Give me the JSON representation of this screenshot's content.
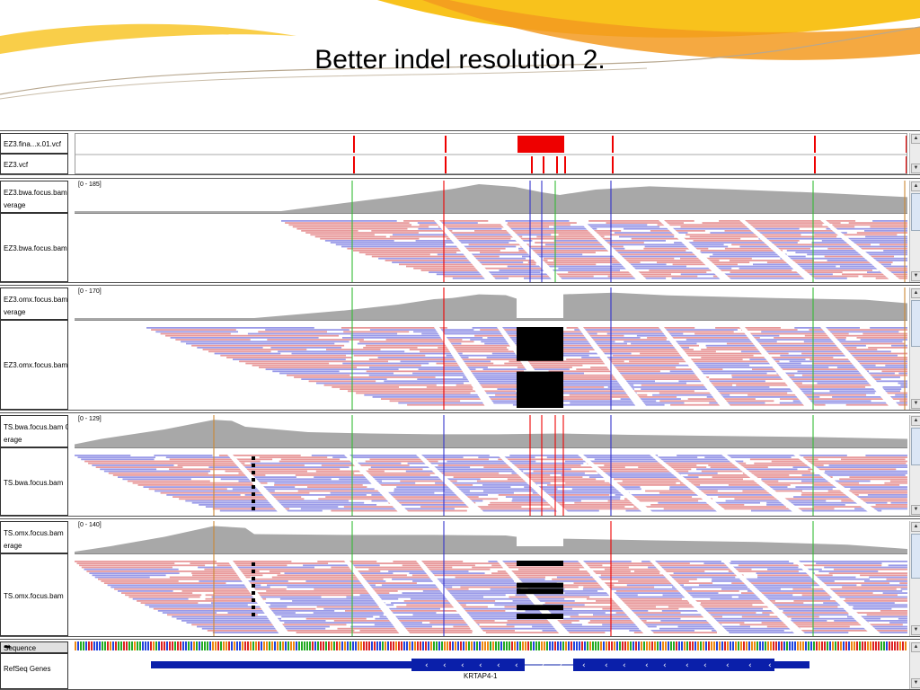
{
  "slide": {
    "title": "Better indel resolution 2."
  },
  "colors": {
    "variant_red": "#ee0000",
    "coverage_gray": "#a8a8a8",
    "read_red": "#e8999b",
    "read_blue": "#9a9ae8",
    "gene_blue": "#0a1faa",
    "deco_yellow": "#f8c21c",
    "deco_orange": "#f39a20"
  },
  "tracks": {
    "vcf1": {
      "label": "EZ3.fina...x.01.vcf"
    },
    "vcf2": {
      "label": "EZ3.vcf"
    },
    "ez3_bwa": {
      "cov_label_1": "EZ3.bwa.focus.bam",
      "cov_label_2": "verage",
      "range": "[0 - 185]",
      "reads_label": "EZ3.bwa.focus.bam"
    },
    "ez3_omx": {
      "cov_label_1": "EZ3.omx.focus.bam",
      "cov_label_2": "verage",
      "range": "[0 - 170]",
      "reads_label": "EZ3.omx.focus.bam"
    },
    "ts_bwa": {
      "cov_label_1": "TS.bwa.focus.bam C",
      "cov_label_2": "erage",
      "range": "[0 - 129]",
      "reads_label": "TS.bwa.focus.bam"
    },
    "ts_omx": {
      "cov_label_1": "TS.omx.focus.bam",
      "cov_label_2": "erage",
      "range": "[0 - 140]",
      "reads_label": "TS.omx.focus.bam"
    },
    "sequence": {
      "label": "Sequence"
    },
    "refseq": {
      "label": "RefSeq Genes",
      "gene_name": "KRTAP4-1"
    }
  }
}
